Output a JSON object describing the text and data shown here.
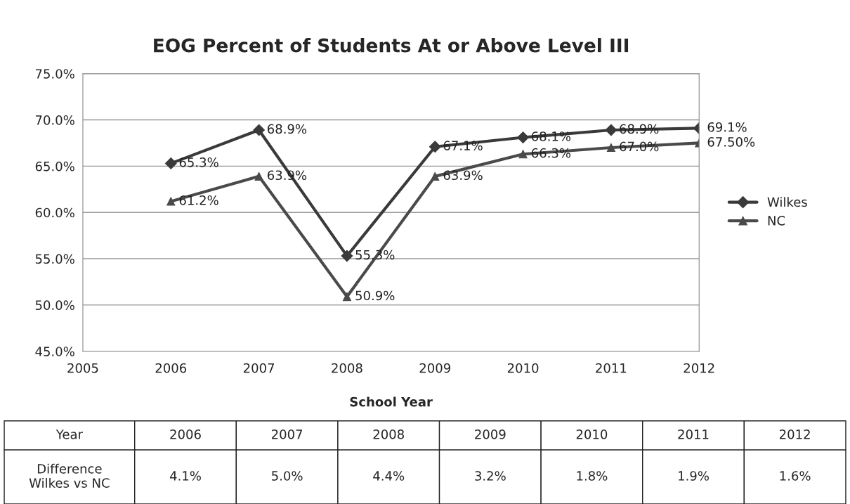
{
  "chart_data": [
    {
      "type": "line",
      "title": "EOG Percent of Students At or Above Level III",
      "xlabel": "School Year",
      "x": [
        2006,
        2007,
        2008,
        2009,
        2010,
        2011,
        2012
      ],
      "series": [
        {
          "name": "Wilkes",
          "color": "#3a3a3a",
          "marker": "diamond",
          "values": [
            65.3,
            68.9,
            55.3,
            67.1,
            68.1,
            68.9,
            69.1
          ],
          "value_labels": [
            "65.3%",
            "68.9%",
            "55.3%",
            "67.1%",
            "68.1%",
            "68.9%",
            "69.1%"
          ]
        },
        {
          "name": "NC",
          "color": "#4a4a4a",
          "marker": "triangle",
          "values": [
            61.2,
            63.9,
            50.9,
            63.9,
            66.3,
            67.0,
            67.5
          ],
          "value_labels": [
            "61.2%",
            "63.9%",
            "50.9%",
            "63.9%",
            "66.3%",
            "67.0%",
            "67.50%"
          ]
        }
      ],
      "xlim": [
        2005,
        2012
      ],
      "xticks": [
        2005,
        2006,
        2007,
        2008,
        2009,
        2010,
        2011,
        2012
      ],
      "ylim": [
        45,
        75
      ],
      "yticks": [
        {
          "value": 45,
          "label": "45.0%"
        },
        {
          "value": 50,
          "label": "50.0%"
        },
        {
          "value": 55,
          "label": "55.0%"
        },
        {
          "value": 60,
          "label": "60.0%"
        },
        {
          "value": 65,
          "label": "65.0%"
        },
        {
          "value": 70,
          "label": "70.0%"
        },
        {
          "value": 75,
          "label": "75.0%"
        }
      ],
      "grid": "y",
      "legend": "right",
      "line_style": "solid",
      "annotations": [
        "Year",
        "2006",
        "2007",
        "2008",
        "2009",
        "2010",
        "2011",
        "2012",
        "Difference\nWilkes vs NC",
        "4.1%",
        "5.0%",
        "4.4%",
        "3.2%",
        "1.8%",
        "1.9%",
        "1.6%"
      ]
    }
  ]
}
